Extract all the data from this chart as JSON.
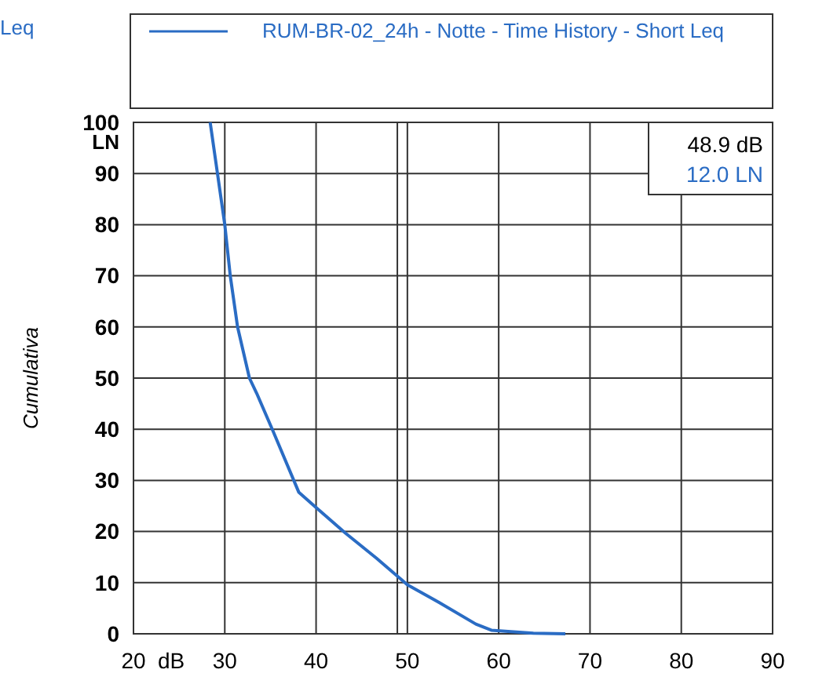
{
  "chart_data": {
    "type": "line",
    "legend_title": "Leq",
    "xlabel": "dB",
    "ylabel": "Cumulativa",
    "series": [
      {
        "name": "RUM-BR-02_24h - Notte - Time History - Short Leq",
        "color": "#2a6cc4",
        "x": [
          28.4,
          29.2,
          30,
          30.6,
          31.4,
          32.7,
          33.5,
          35.2,
          38.1,
          39.8,
          43.2,
          46.6,
          50,
          53.5,
          57.5,
          59.2,
          63.8,
          67.3
        ],
        "values": [
          100,
          90,
          80,
          70,
          60,
          50,
          47,
          40,
          27.7,
          25,
          19.7,
          14.8,
          9.6,
          6.1,
          1.9,
          0.7,
          0.1,
          0
        ]
      }
    ],
    "xlim": [
      20,
      90
    ],
    "xticks": [
      20,
      30,
      40,
      50,
      60,
      70,
      80,
      90
    ],
    "ylim": [
      0,
      100
    ],
    "yticks": [
      0,
      10,
      20,
      30,
      40,
      50,
      60,
      70,
      80,
      90,
      100
    ],
    "ref_lines": [
      {
        "axis": "x",
        "value": 48.9,
        "color": "#333333"
      }
    ],
    "annotations": [
      "48.9 dB",
      "12.0 LN",
      "LN"
    ],
    "grid": true,
    "legend": "top",
    "marker": "none",
    "line_style": "solid"
  }
}
